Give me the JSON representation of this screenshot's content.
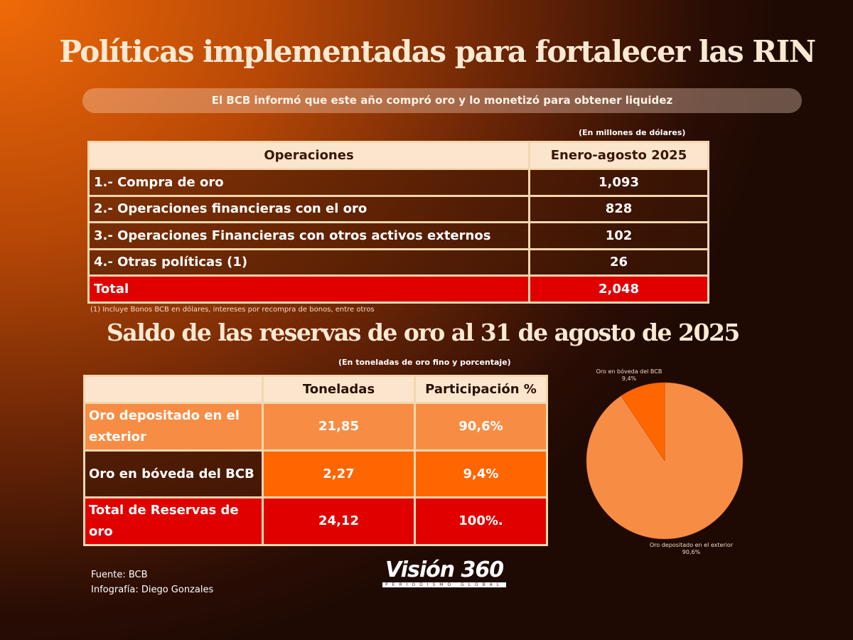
{
  "title": "Políticas implementadas para fortalecer las RIN",
  "subtitle": "El BCB informó que este año compró oro y lo monetizó para obtener liquidez",
  "table1": {
    "unit_note": "(En millones de dólares)",
    "headers": [
      "Operaciones",
      "Enero-agosto 2025"
    ],
    "rows": [
      [
        "1.- Compra de oro",
        "1,093"
      ],
      [
        "2.- Operaciones financieras con el oro",
        "828"
      ],
      [
        "3.- Operaciones Financieras con otros activos externos",
        "102"
      ],
      [
        "4.- Otras políticas (1)",
        "26"
      ]
    ],
    "total": [
      "Total",
      "2,048"
    ],
    "footnote": "(1) Incluye Bonos BCB en dólares, intereses por recompra de bonos, entre otros"
  },
  "title2": "Saldo de las reservas de oro al 31 de agosto de 2025",
  "table2": {
    "unit_note": "(En toneladas de oro fino y porcentaje)",
    "headers": [
      "",
      "Toneladas",
      "Participación %"
    ],
    "rows": [
      [
        "Oro depositado en el exterior",
        "21,85",
        "90,6%"
      ],
      [
        "Oro en bóveda del BCB",
        "2,27",
        "9,4%"
      ],
      [
        "Total de Reservas de oro",
        "24,12",
        "100%."
      ]
    ]
  },
  "chart_data": {
    "type": "pie",
    "categories": [
      "Oro depositado en el exterior",
      "Oro en bóveda del BCB"
    ],
    "values": [
      90.6,
      9.4
    ],
    "labels": [
      "90,6%",
      "9,4%"
    ],
    "colors": [
      "#f78d45",
      "#ff6600"
    ]
  },
  "footer": {
    "source": "Fuente: BCB",
    "credit": "Infografía: Diego Gonzales",
    "logo_text": "Visión 360",
    "logo_tagline": "PERIODISMO GLOBAL"
  }
}
